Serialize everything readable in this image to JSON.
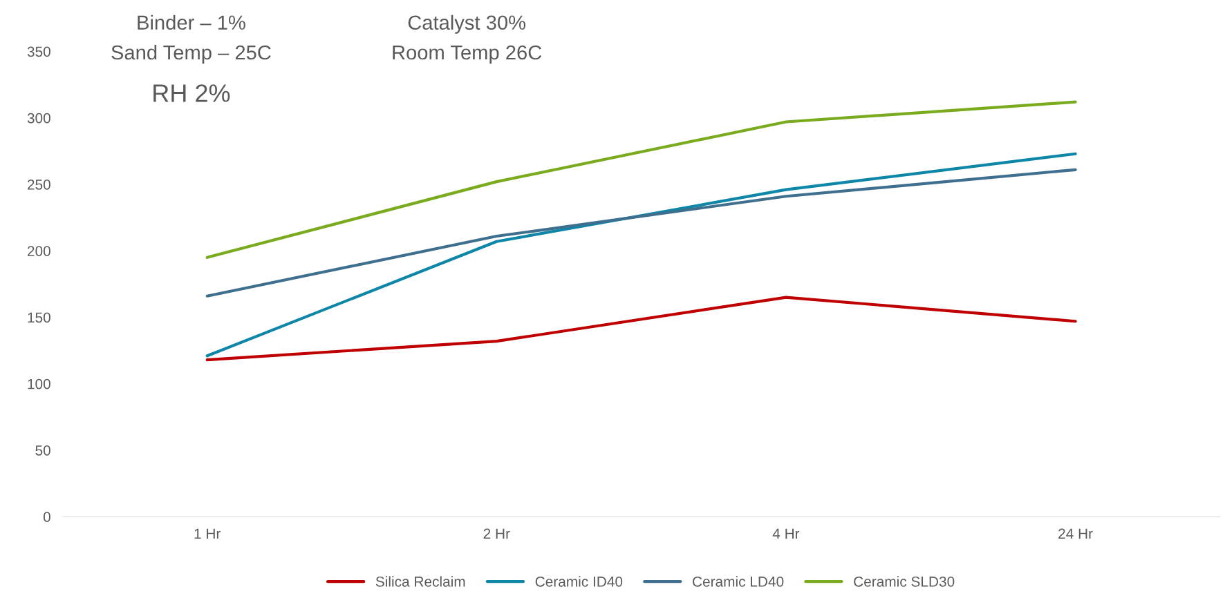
{
  "chart_data": {
    "type": "line",
    "categories": [
      "1 Hr",
      "2 Hr",
      "4 Hr",
      "24 Hr"
    ],
    "series": [
      {
        "name": "Silica Reclaim",
        "color": "#c00000",
        "values": [
          118,
          132,
          165,
          147
        ]
      },
      {
        "name": "Ceramic ID40",
        "color": "#0e86a8",
        "values": [
          121,
          207,
          246,
          273
        ]
      },
      {
        "name": "Ceramic LD40",
        "color": "#3f6f8f",
        "values": [
          166,
          211,
          241,
          261
        ]
      },
      {
        "name": "Ceramic SLD30",
        "color": "#7aab1e",
        "values": [
          195,
          252,
          297,
          312
        ]
      }
    ],
    "ylim": [
      0,
      350
    ],
    "yticks": [
      0,
      50,
      100,
      150,
      200,
      250,
      300,
      350
    ],
    "annotations": [
      "Binder – 1%",
      "Sand Temp – 25C",
      "RH 2%",
      "Catalyst 30%",
      "Room Temp 26C"
    ],
    "legend": "bottom",
    "grid": false,
    "marker": "none",
    "line_style": "solid"
  }
}
